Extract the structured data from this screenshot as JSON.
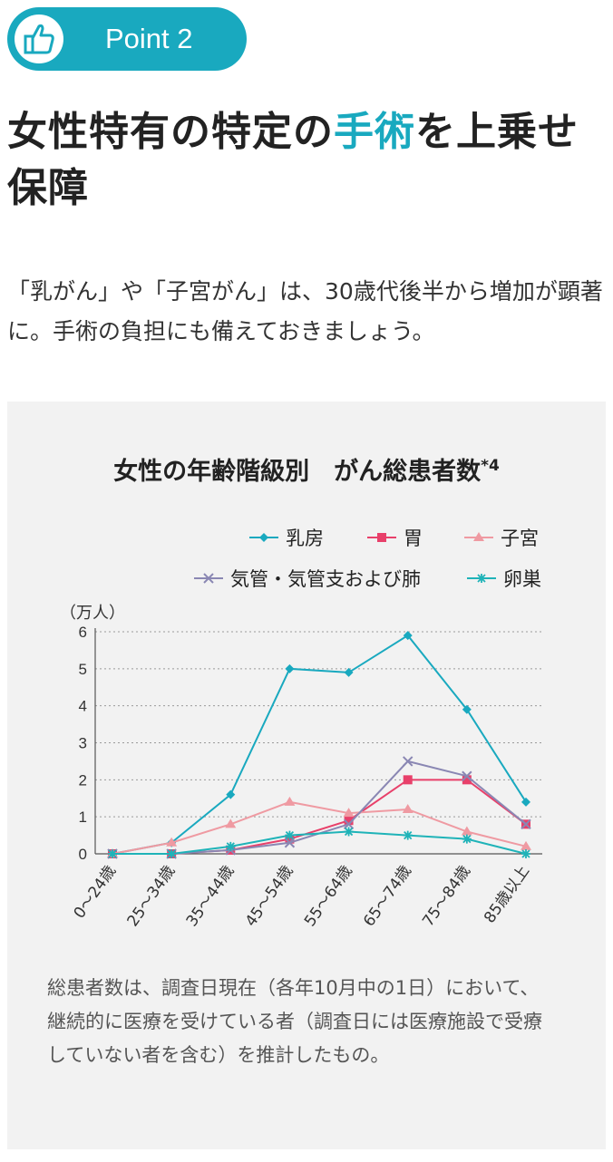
{
  "badge": {
    "label": "Point 2",
    "icon": "thumbs-up-icon"
  },
  "heading": {
    "before": "女性特有の特定の",
    "highlight": "手術",
    "after": "を上乗せ保障"
  },
  "lead": "「乳がん」や「子宮がん」は、30歳代後半から増加が顕著に。手術の負担にも備えておきましょう。",
  "note": "総患者数は、調査日現在（各年10月中の1日）において、継続的に医療を受けている者（調査日には医療施設で受療していない者を含む）を推計したもの。",
  "colors": {
    "accent": "#19a9bf",
    "panel": "#f2f2f2"
  },
  "chart_data": {
    "type": "line",
    "title": "女性の年齢階級別　がん総患者数",
    "title_suffix": "*4",
    "ylabel": "（万人）",
    "ylim": [
      0,
      6
    ],
    "yticks": [
      "0",
      "1",
      "2",
      "3",
      "4",
      "5",
      "6"
    ],
    "grid": true,
    "legend_position": "top-right",
    "categories": [
      "0～24歳",
      "25～34歳",
      "35～44歳",
      "45～54歳",
      "55～64歳",
      "65～74歳",
      "75～84歳",
      "85歳以上"
    ],
    "series": [
      {
        "name": "乳房",
        "color": "#19a9bf",
        "marker": "diamond",
        "values": [
          0,
          0.3,
          1.6,
          5.0,
          4.9,
          5.9,
          3.9,
          1.4
        ]
      },
      {
        "name": "胃",
        "color": "#e8406a",
        "marker": "square",
        "values": [
          0,
          0,
          0.1,
          0.4,
          0.9,
          2.0,
          2.0,
          0.8
        ]
      },
      {
        "name": "子宮",
        "color": "#ef9aa2",
        "marker": "triangle",
        "values": [
          0,
          0.3,
          0.8,
          1.4,
          1.1,
          1.2,
          0.6,
          0.2
        ]
      },
      {
        "name": "気管・気管支および肺",
        "color": "#8a87b3",
        "marker": "x",
        "values": [
          0,
          0,
          0.1,
          0.3,
          0.8,
          2.5,
          2.1,
          0.8
        ]
      },
      {
        "name": "卵巣",
        "color": "#1fb3b8",
        "marker": "asterisk",
        "values": [
          0,
          0,
          0.2,
          0.5,
          0.6,
          0.5,
          0.4,
          0
        ]
      }
    ]
  }
}
